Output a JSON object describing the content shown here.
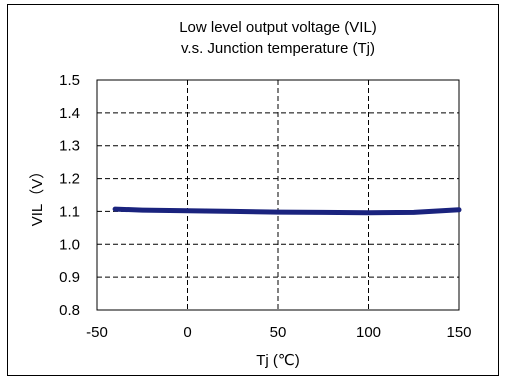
{
  "chart_data": {
    "type": "line",
    "title": [
      "Low level output voltage (VIL)",
      "v.s. Junction temperature (Tj)"
    ],
    "xlabel": "Tj (℃)",
    "ylabel": "VIL（V）",
    "xlim": [
      -50,
      150
    ],
    "ylim": [
      0.8,
      1.5
    ],
    "xticks": [
      -50,
      0,
      50,
      100,
      150
    ],
    "xtick_labels": [
      "-50",
      "0",
      "50",
      "100",
      "150"
    ],
    "yticks": [
      0.8,
      0.9,
      1.0,
      1.1,
      1.2,
      1.3,
      1.4,
      1.5
    ],
    "ytick_labels": [
      "0.8",
      "0.9",
      "1.0",
      "1.1",
      "1.2",
      "1.3",
      "1.4",
      "1.5"
    ],
    "grid": true,
    "series": [
      {
        "color": "#1a237e",
        "x": [
          -40,
          -25,
          0,
          25,
          50,
          75,
          100,
          125,
          150
        ],
        "y": [
          1.107,
          1.104,
          1.102,
          1.1,
          1.098,
          1.097,
          1.096,
          1.097,
          1.105
        ]
      }
    ]
  }
}
